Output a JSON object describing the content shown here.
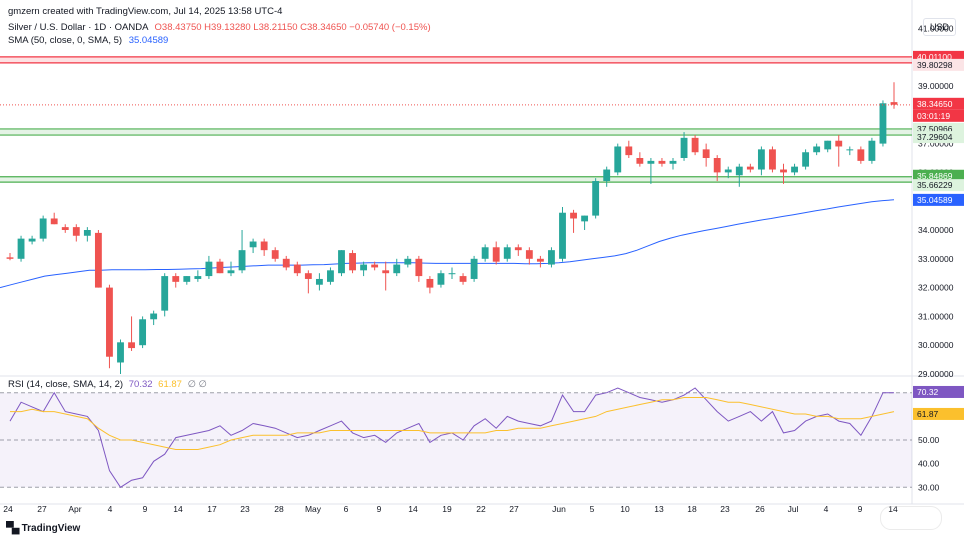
{
  "header": {
    "credit": "gmzern created with TradingView.com, Jul 14, 2025 13:58 UTC-4",
    "symbol": "Silver / U.S. Dollar · 1D · OANDA",
    "ohlc": "O38.43750 H39.13280 L38.21150 C38.34650 −0.05740 (−0.15%)",
    "sma_label": "SMA (50, close, 0, SMA, 5)",
    "sma_value": "35.04589",
    "rsi_label": "RSI (14, close, SMA, 14, 2)",
    "rsi_value": "70.32",
    "rsi_ma_value": "61.87",
    "rsi_extra": "∅ ∅"
  },
  "currency": "USD",
  "footer_logo": "TradingView",
  "colors": {
    "up": "#26a69a",
    "down": "#ef5350",
    "sma": "#2962ff",
    "rsi": "#7e57c2",
    "rsi_ma": "#fbc02d",
    "resistance": "#f23645",
    "support": "#4caf50"
  },
  "chart_data": [
    {
      "type": "candlestick",
      "title": "Silver / U.S. Dollar · 1D · OANDA",
      "ylim": [
        29.0,
        41.5
      ],
      "y_ticks": [
        "41.00000",
        "40.00000",
        "39.00000",
        "38.00000",
        "37.00000",
        "36.00000",
        "35.00000",
        "34.00000",
        "33.00000",
        "32.00000",
        "31.00000",
        "30.00000",
        "29.00000"
      ],
      "x_tick_labels": [
        "24",
        "27",
        "Apr",
        "4",
        "9",
        "14",
        "17",
        "23",
        "28",
        "May",
        "6",
        "9",
        "14",
        "19",
        "22",
        "27",
        "Jun",
        "5",
        "10",
        "13",
        "18",
        "23",
        "26",
        "Jul",
        "4",
        "9",
        "14"
      ],
      "candles": [
        {
          "o": 33.05,
          "h": 33.2,
          "l": 32.95,
          "c": 33.0
        },
        {
          "o": 33.0,
          "h": 33.8,
          "l": 32.9,
          "c": 33.7
        },
        {
          "o": 33.6,
          "h": 33.8,
          "l": 33.5,
          "c": 33.7
        },
        {
          "o": 33.7,
          "h": 34.5,
          "l": 33.6,
          "c": 34.4
        },
        {
          "o": 34.4,
          "h": 34.6,
          "l": 34.2,
          "c": 34.2
        },
        {
          "o": 34.1,
          "h": 34.2,
          "l": 33.9,
          "c": 34.0
        },
        {
          "o": 34.1,
          "h": 34.2,
          "l": 33.6,
          "c": 33.8
        },
        {
          "o": 33.8,
          "h": 34.1,
          "l": 33.6,
          "c": 34.0
        },
        {
          "o": 33.9,
          "h": 34.0,
          "l": 32.0,
          "c": 32.0
        },
        {
          "o": 32.0,
          "h": 32.1,
          "l": 29.2,
          "c": 29.6
        },
        {
          "o": 29.4,
          "h": 30.2,
          "l": 29.0,
          "c": 30.1
        },
        {
          "o": 30.1,
          "h": 31.0,
          "l": 29.8,
          "c": 29.9
        },
        {
          "o": 30.0,
          "h": 31.0,
          "l": 29.9,
          "c": 30.9
        },
        {
          "o": 30.9,
          "h": 31.2,
          "l": 30.7,
          "c": 31.1
        },
        {
          "o": 31.2,
          "h": 32.5,
          "l": 31.0,
          "c": 32.4
        },
        {
          "o": 32.4,
          "h": 32.5,
          "l": 32.0,
          "c": 32.2
        },
        {
          "o": 32.2,
          "h": 32.4,
          "l": 32.1,
          "c": 32.4
        },
        {
          "o": 32.3,
          "h": 32.6,
          "l": 32.2,
          "c": 32.4
        },
        {
          "o": 32.4,
          "h": 33.1,
          "l": 32.3,
          "c": 32.9
        },
        {
          "o": 32.9,
          "h": 33.0,
          "l": 32.5,
          "c": 32.5
        },
        {
          "o": 32.5,
          "h": 32.9,
          "l": 32.4,
          "c": 32.6
        },
        {
          "o": 32.6,
          "h": 34.0,
          "l": 32.5,
          "c": 33.3
        },
        {
          "o": 33.4,
          "h": 33.7,
          "l": 33.2,
          "c": 33.6
        },
        {
          "o": 33.6,
          "h": 33.7,
          "l": 33.1,
          "c": 33.3
        },
        {
          "o": 33.3,
          "h": 33.4,
          "l": 32.9,
          "c": 33.0
        },
        {
          "o": 33.0,
          "h": 33.1,
          "l": 32.6,
          "c": 32.7
        },
        {
          "o": 32.8,
          "h": 32.9,
          "l": 32.4,
          "c": 32.5
        },
        {
          "o": 32.5,
          "h": 32.6,
          "l": 31.8,
          "c": 32.3
        },
        {
          "o": 32.1,
          "h": 32.5,
          "l": 31.9,
          "c": 32.3
        },
        {
          "o": 32.2,
          "h": 32.7,
          "l": 32.1,
          "c": 32.6
        },
        {
          "o": 32.5,
          "h": 33.3,
          "l": 32.4,
          "c": 33.3
        },
        {
          "o": 33.2,
          "h": 33.3,
          "l": 32.5,
          "c": 32.6
        },
        {
          "o": 32.6,
          "h": 32.9,
          "l": 32.4,
          "c": 32.8
        },
        {
          "o": 32.8,
          "h": 32.9,
          "l": 32.6,
          "c": 32.7
        },
        {
          "o": 32.6,
          "h": 32.9,
          "l": 31.9,
          "c": 32.5
        },
        {
          "o": 32.5,
          "h": 33.0,
          "l": 32.4,
          "c": 32.8
        },
        {
          "o": 32.8,
          "h": 33.1,
          "l": 32.7,
          "c": 33.0
        },
        {
          "o": 33.0,
          "h": 33.1,
          "l": 32.2,
          "c": 32.4
        },
        {
          "o": 32.3,
          "h": 32.4,
          "l": 31.8,
          "c": 32.0
        },
        {
          "o": 32.1,
          "h": 32.6,
          "l": 32.0,
          "c": 32.5
        },
        {
          "o": 32.5,
          "h": 32.7,
          "l": 32.3,
          "c": 32.5
        },
        {
          "o": 32.4,
          "h": 32.5,
          "l": 32.1,
          "c": 32.2
        },
        {
          "o": 32.3,
          "h": 33.1,
          "l": 32.2,
          "c": 33.0
        },
        {
          "o": 33.0,
          "h": 33.5,
          "l": 32.9,
          "c": 33.4
        },
        {
          "o": 33.4,
          "h": 33.6,
          "l": 32.8,
          "c": 32.9
        },
        {
          "o": 33.0,
          "h": 33.5,
          "l": 32.9,
          "c": 33.4
        },
        {
          "o": 33.4,
          "h": 33.5,
          "l": 33.1,
          "c": 33.3
        },
        {
          "o": 33.3,
          "h": 33.4,
          "l": 32.8,
          "c": 33.0
        },
        {
          "o": 33.0,
          "h": 33.1,
          "l": 32.7,
          "c": 32.9
        },
        {
          "o": 32.8,
          "h": 33.4,
          "l": 32.7,
          "c": 33.3
        },
        {
          "o": 33.0,
          "h": 34.8,
          "l": 32.9,
          "c": 34.6
        },
        {
          "o": 34.6,
          "h": 34.7,
          "l": 33.9,
          "c": 34.4
        },
        {
          "o": 34.3,
          "h": 34.5,
          "l": 34.0,
          "c": 34.5
        },
        {
          "o": 34.5,
          "h": 35.8,
          "l": 34.4,
          "c": 35.7
        },
        {
          "o": 35.7,
          "h": 36.2,
          "l": 35.5,
          "c": 36.1
        },
        {
          "o": 36.0,
          "h": 37.0,
          "l": 35.9,
          "c": 36.9
        },
        {
          "o": 36.9,
          "h": 37.1,
          "l": 36.5,
          "c": 36.6
        },
        {
          "o": 36.5,
          "h": 36.7,
          "l": 36.2,
          "c": 36.3
        },
        {
          "o": 36.3,
          "h": 36.5,
          "l": 35.6,
          "c": 36.4
        },
        {
          "o": 36.4,
          "h": 36.5,
          "l": 36.2,
          "c": 36.3
        },
        {
          "o": 36.3,
          "h": 36.5,
          "l": 36.1,
          "c": 36.4
        },
        {
          "o": 36.5,
          "h": 37.4,
          "l": 36.4,
          "c": 37.2
        },
        {
          "o": 37.2,
          "h": 37.3,
          "l": 36.6,
          "c": 36.7
        },
        {
          "o": 36.8,
          "h": 37.0,
          "l": 36.2,
          "c": 36.5
        },
        {
          "o": 36.5,
          "h": 36.6,
          "l": 35.7,
          "c": 36.0
        },
        {
          "o": 36.0,
          "h": 36.2,
          "l": 35.8,
          "c": 36.1
        },
        {
          "o": 35.9,
          "h": 36.3,
          "l": 35.5,
          "c": 36.2
        },
        {
          "o": 36.2,
          "h": 36.3,
          "l": 36.0,
          "c": 36.1
        },
        {
          "o": 36.1,
          "h": 36.9,
          "l": 35.9,
          "c": 36.8
        },
        {
          "o": 36.8,
          "h": 36.9,
          "l": 36.0,
          "c": 36.1
        },
        {
          "o": 36.1,
          "h": 36.3,
          "l": 35.6,
          "c": 36.0
        },
        {
          "o": 36.0,
          "h": 36.3,
          "l": 35.9,
          "c": 36.2
        },
        {
          "o": 36.2,
          "h": 36.8,
          "l": 36.1,
          "c": 36.7
        },
        {
          "o": 36.7,
          "h": 37.0,
          "l": 36.6,
          "c": 36.9
        },
        {
          "o": 36.8,
          "h": 37.1,
          "l": 36.7,
          "c": 37.1
        },
        {
          "o": 37.1,
          "h": 37.3,
          "l": 36.2,
          "c": 36.9
        },
        {
          "o": 36.8,
          "h": 36.9,
          "l": 36.6,
          "c": 36.8
        },
        {
          "o": 36.8,
          "h": 36.9,
          "l": 36.3,
          "c": 36.4
        },
        {
          "o": 36.4,
          "h": 37.2,
          "l": 36.3,
          "c": 37.1
        },
        {
          "o": 37.0,
          "h": 38.5,
          "l": 36.9,
          "c": 38.4
        },
        {
          "o": 38.44,
          "h": 39.13,
          "l": 38.21,
          "c": 38.35
        }
      ],
      "sma": {
        "name": "SMA (50, close, 0, SMA, 5)",
        "y_start": 32.0,
        "points": [
          32.0,
          32.1,
          32.2,
          32.3,
          32.4,
          32.45,
          32.5,
          32.55,
          32.6,
          32.6,
          32.62,
          32.62,
          32.62,
          32.62,
          32.63,
          32.63,
          32.64,
          32.65,
          32.66,
          32.68,
          32.7,
          32.72,
          32.74,
          32.76,
          32.78,
          32.78,
          32.78,
          32.78,
          32.79,
          32.8,
          32.82,
          32.84,
          32.85,
          32.86,
          32.86,
          32.86,
          32.86,
          32.86,
          32.85,
          32.84,
          32.84,
          32.84,
          32.84,
          32.84,
          32.84,
          32.84,
          32.84,
          32.83,
          32.83,
          32.84,
          32.86,
          32.9,
          32.95,
          33.0,
          33.05,
          33.1,
          33.18,
          33.3,
          33.45,
          33.6,
          33.72,
          33.82,
          33.9,
          33.98,
          34.05,
          34.12,
          34.2,
          34.27,
          34.34,
          34.4,
          34.47,
          34.53,
          34.6,
          34.67,
          34.73,
          34.8,
          34.86,
          34.92,
          34.98,
          35.02,
          35.05
        ]
      },
      "levels": [
        {
          "label": "40.01100",
          "value": 40.011,
          "kind": "resistance"
        },
        {
          "label": "39.80298",
          "value": 39.80298,
          "kind": "resistance"
        },
        {
          "label": "37.50966",
          "value": 37.50966,
          "kind": "support"
        },
        {
          "label": "37.29604",
          "value": 37.29604,
          "kind": "support"
        },
        {
          "label": "35.84869",
          "value": 35.84869,
          "kind": "support"
        },
        {
          "label": "35.66229",
          "value": 35.66229,
          "kind": "support"
        }
      ],
      "last_price": {
        "label": "38.34650",
        "countdown": "03:01:19",
        "value": 38.3465
      }
    },
    {
      "type": "line",
      "title": "RSI (14, close, SMA, 14, 2)",
      "ylim": [
        28,
        72
      ],
      "y_ticks": [
        "70.00",
        "60.00",
        "50.00",
        "40.00",
        "30.00"
      ],
      "bands": [
        70,
        50,
        30
      ],
      "series": [
        {
          "name": "RSI",
          "values": [
            58,
            66,
            64,
            62,
            70,
            62,
            61,
            60,
            54,
            37,
            30,
            33,
            34,
            41,
            44,
            51,
            52,
            53,
            54,
            56,
            52,
            54,
            57,
            56,
            55,
            53,
            51,
            52,
            54,
            56,
            58,
            53,
            51,
            52,
            49,
            53,
            55,
            57,
            49,
            52,
            53,
            50,
            56,
            59,
            55,
            60,
            58,
            57,
            56,
            58,
            69,
            62,
            62,
            69,
            70,
            72,
            70,
            68,
            67,
            66,
            67,
            69,
            72,
            67,
            62,
            58,
            60,
            62,
            58,
            62,
            53,
            54,
            58,
            60,
            61,
            58,
            57,
            52,
            60,
            70,
            70
          ]
        },
        {
          "name": "RSI MA",
          "values": [
            62,
            62,
            63,
            62,
            62,
            61,
            60,
            59,
            55,
            52,
            50,
            50,
            49,
            48,
            47,
            46,
            46,
            46,
            47,
            48,
            50,
            51,
            52,
            52,
            52,
            52,
            53,
            53,
            53,
            54,
            54,
            54,
            54,
            54,
            54,
            54,
            54,
            54,
            53,
            53,
            53,
            53,
            53,
            53,
            54,
            54,
            55,
            55,
            55,
            56,
            57,
            58,
            59,
            60,
            62,
            63,
            64,
            65,
            66,
            67,
            67,
            68,
            68,
            68,
            67,
            66,
            66,
            65,
            64,
            63,
            62,
            61,
            61,
            60,
            60,
            59,
            59,
            59,
            60,
            61,
            62
          ]
        }
      ]
    }
  ]
}
